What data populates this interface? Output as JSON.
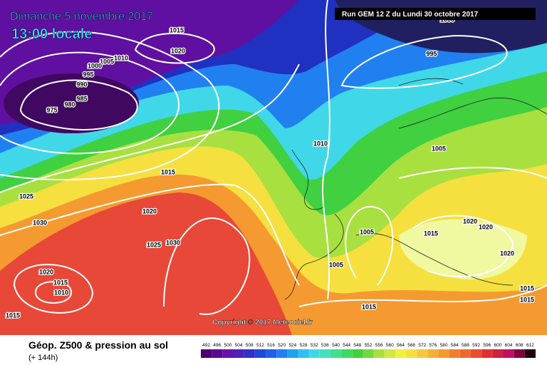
{
  "header": {
    "title": "Dimanche 5 novembre 2017",
    "subtitle": "13:00 locale",
    "run": "Run GEM 12 Z du Lundi 30 octobre 2017"
  },
  "isobar_labels": [
    1015,
    1020,
    1010,
    1005,
    1000,
    995,
    990,
    985,
    980,
    975,
    1000,
    995,
    1010,
    1005,
    1015,
    1025,
    1030,
    1020,
    1025,
    1030,
    1020,
    1015,
    1010,
    1015,
    1005,
    1005,
    1015,
    1020,
    1020,
    1020,
    1015,
    1015,
    1015
  ],
  "copyright": "Copyright © 2017 Meteociel.fr",
  "footer": {
    "title": "Géop. Z500 & pression au sol",
    "lead": "(+ 144h)"
  },
  "legend": {
    "values": [
      492,
      496,
      500,
      504,
      508,
      512,
      516,
      520,
      524,
      528,
      532,
      536,
      540,
      544,
      548,
      552,
      556,
      560,
      564,
      568,
      572,
      576,
      580,
      584,
      588,
      592,
      596,
      600,
      604,
      608,
      612
    ],
    "colors": [
      "#4a0070",
      "#5a0890",
      "#6a10a8",
      "#5020b8",
      "#3030c8",
      "#2048d8",
      "#2060e8",
      "#2080f0",
      "#20a0f0",
      "#30c0f0",
      "#40d8e8",
      "#40e0c0",
      "#40e090",
      "#40d860",
      "#40d040",
      "#70d840",
      "#a8e040",
      "#d0e840",
      "#f0f040",
      "#f5e040",
      "#f5c840",
      "#f5b038",
      "#f59a30",
      "#f08030",
      "#f06830",
      "#e85030",
      "#e03030",
      "#d02040",
      "#c01060",
      "#800040",
      "#200010"
    ]
  }
}
